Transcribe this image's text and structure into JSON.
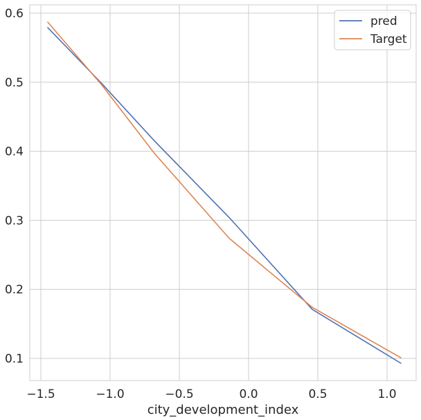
{
  "chart_data": {
    "type": "line",
    "xlabel": "city_development_index",
    "ylabel": "",
    "xlim": [
      -1.58,
      1.21
    ],
    "ylim": [
      0.068,
      0.612
    ],
    "xticks": [
      -1.5,
      -1.0,
      -0.5,
      0.0,
      0.5,
      1.0
    ],
    "xtick_labels": [
      "−1.5",
      "−1.0",
      "−0.5",
      "0.0",
      "0.5",
      "1.0"
    ],
    "yticks": [
      0.1,
      0.2,
      0.3,
      0.4,
      0.5,
      0.6
    ],
    "ytick_labels": [
      "0.1",
      "0.2",
      "0.3",
      "0.4",
      "0.5",
      "0.6"
    ],
    "grid": true,
    "legend_position": "top-right",
    "series": [
      {
        "name": "pred",
        "color": "#4c72b0",
        "x": [
          -1.45,
          -1.06,
          -0.68,
          -0.14,
          0.46,
          1.1
        ],
        "y": [
          0.579,
          0.498,
          0.415,
          0.304,
          0.171,
          0.093
        ]
      },
      {
        "name": "Target",
        "color": "#dd8452",
        "x": [
          -1.45,
          -1.06,
          -0.68,
          -0.14,
          0.46,
          1.1
        ],
        "y": [
          0.587,
          0.496,
          0.397,
          0.274,
          0.174,
          0.101
        ]
      }
    ]
  }
}
